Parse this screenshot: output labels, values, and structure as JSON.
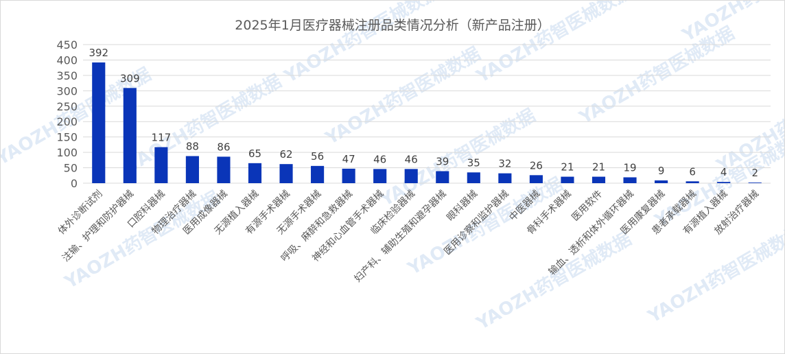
{
  "chart_data": {
    "type": "bar",
    "title": "2025年1月医疗器械注册品类情况分析（新产品注册）",
    "categories": [
      "体外诊断试剂",
      "注输、护理和防护器械",
      "口腔科器械",
      "物理治疗器械",
      "医用成像器械",
      "无源植入器械",
      "有源手术器械",
      "无源手术器械",
      "呼吸、麻醉和急救器械",
      "神经和心血管手术器械",
      "临床检验器械",
      "妇产科、辅助生殖和避孕器械",
      "眼科器械",
      "医用诊察和监护器械",
      "中医器械",
      "骨科手术器械",
      "医用软件",
      "输血、透析和体外循环器械",
      "医用康复器械",
      "患者承载器械",
      "有源植入器械",
      "放射治疗器械"
    ],
    "values": [
      392,
      309,
      117,
      88,
      86,
      65,
      62,
      56,
      47,
      46,
      46,
      39,
      35,
      32,
      26,
      21,
      21,
      19,
      9,
      6,
      4,
      2
    ],
    "ylim": [
      0,
      450
    ],
    "yticks": [
      0,
      50,
      100,
      150,
      200,
      250,
      300,
      350,
      400,
      450
    ],
    "grid": true,
    "legend": "none",
    "bar_color": "#0a35b8"
  },
  "watermark": "YAOZH药智医械数据"
}
